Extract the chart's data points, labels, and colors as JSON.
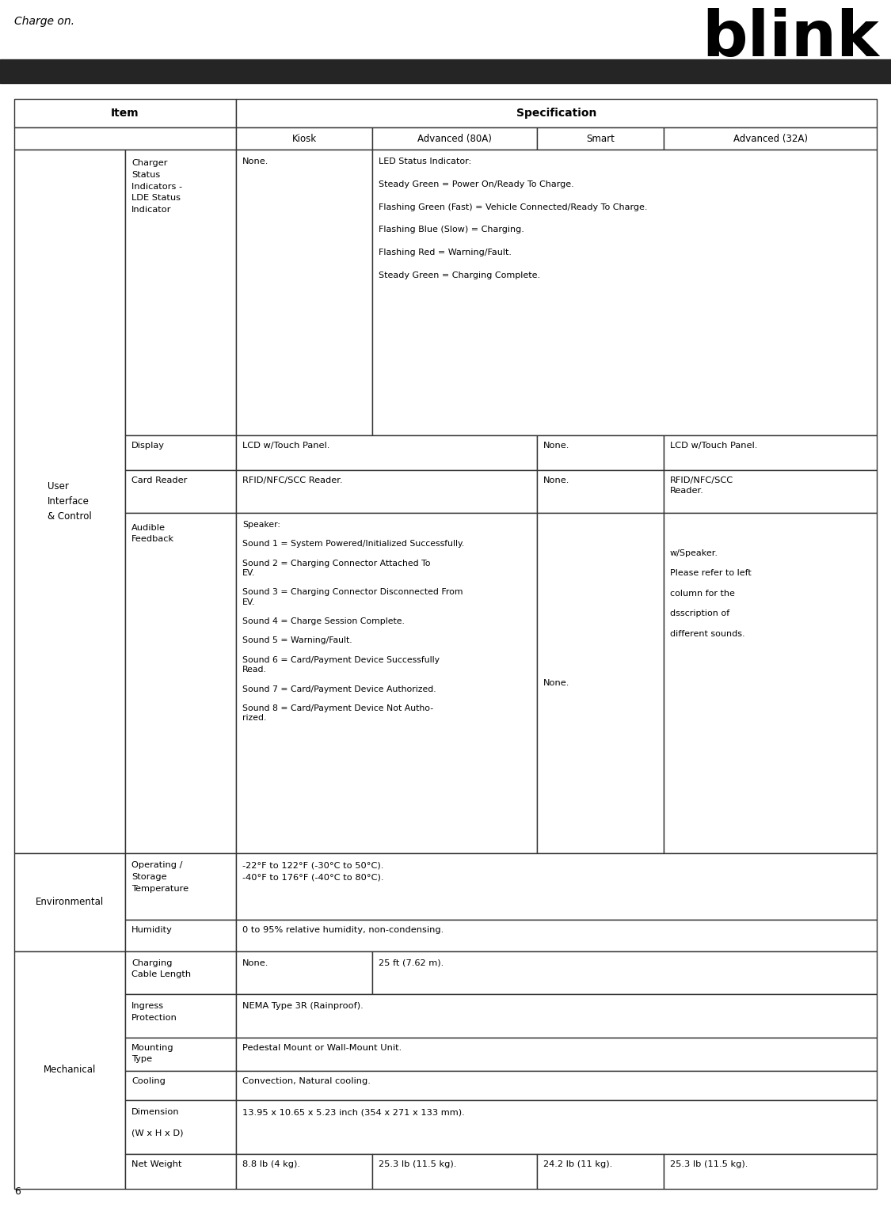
{
  "title_text": "Charge on.",
  "page_number": "6",
  "dark_bar_color": "#252525",
  "table_border_color": "#333333",
  "spec_header": "Specification",
  "item_header": "Item",
  "col_headers": [
    "Kiosk",
    "Advanced (80A)",
    "Smart",
    "Advanced (32A)"
  ],
  "blink_text": "blink",
  "font": "DejaVu Sans"
}
